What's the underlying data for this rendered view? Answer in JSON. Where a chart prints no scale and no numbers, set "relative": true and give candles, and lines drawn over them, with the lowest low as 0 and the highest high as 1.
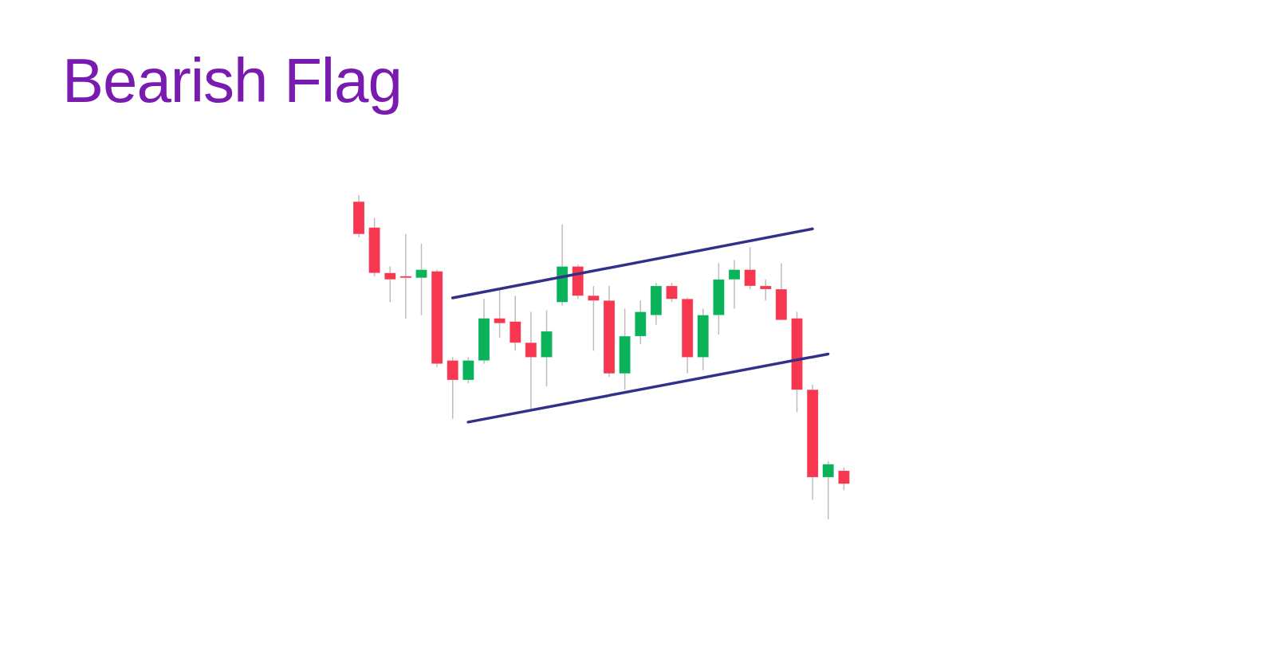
{
  "chart_data": {
    "type": "candlestick",
    "title": "Bearish Flag",
    "relative": true,
    "categories": [
      null,
      null,
      null,
      null,
      null,
      null,
      null,
      null,
      null,
      null,
      null,
      null,
      null,
      null,
      null,
      null,
      null,
      null,
      null,
      null,
      null,
      null,
      null,
      null,
      null,
      null,
      null,
      null,
      null,
      null,
      null,
      null
    ],
    "ohlc": [
      [
        0.98,
        1.0,
        0.87,
        0.88
      ],
      [
        0.9,
        0.93,
        0.75,
        0.76
      ],
      [
        0.76,
        0.78,
        0.67,
        0.74
      ],
      [
        0.75,
        0.88,
        0.62,
        0.745
      ],
      [
        0.745,
        0.85,
        0.63,
        0.77
      ],
      [
        0.765,
        0.77,
        0.47,
        0.48
      ],
      [
        0.49,
        0.5,
        0.31,
        0.43
      ],
      [
        0.43,
        0.5,
        0.42,
        0.49
      ],
      [
        0.49,
        0.68,
        0.48,
        0.62
      ],
      [
        0.62,
        0.71,
        0.56,
        0.605
      ],
      [
        0.61,
        0.69,
        0.52,
        0.545
      ],
      [
        0.545,
        0.64,
        0.34,
        0.5
      ],
      [
        0.5,
        0.645,
        0.41,
        0.58
      ],
      [
        0.67,
        0.91,
        0.66,
        0.78
      ],
      [
        0.78,
        0.785,
        0.68,
        0.69
      ],
      [
        0.69,
        0.72,
        0.52,
        0.675
      ],
      [
        0.675,
        0.72,
        0.44,
        0.45
      ],
      [
        0.45,
        0.65,
        0.4,
        0.565
      ],
      [
        0.565,
        0.675,
        0.54,
        0.64
      ],
      [
        0.63,
        0.73,
        0.6,
        0.72
      ],
      [
        0.72,
        0.73,
        0.67,
        0.68
      ],
      [
        0.68,
        0.685,
        0.45,
        0.5
      ],
      [
        0.5,
        0.65,
        0.46,
        0.63
      ],
      [
        0.63,
        0.79,
        0.57,
        0.74
      ],
      [
        0.74,
        0.8,
        0.65,
        0.77
      ],
      [
        0.77,
        0.84,
        0.71,
        0.72
      ],
      [
        0.72,
        0.74,
        0.675,
        0.71
      ],
      [
        0.71,
        0.79,
        0.615,
        0.615
      ],
      [
        0.62,
        0.64,
        0.33,
        0.4
      ],
      [
        0.4,
        0.415,
        0.06,
        0.13
      ],
      [
        0.13,
        0.18,
        0.0,
        0.17
      ],
      [
        0.15,
        0.16,
        0.09,
        0.11
      ]
    ],
    "colors": [
      "#f7374f",
      "#f7374f",
      "#f7374f",
      "#f7374f",
      "#0ab35a",
      "#f7374f",
      "#f7374f",
      "#0ab35a",
      "#0ab35a",
      "#f7374f",
      "#f7374f",
      "#f7374f",
      "#0ab35a",
      "#0ab35a",
      "#f7374f",
      "#f7374f",
      "#f7374f",
      "#0ab35a",
      "#0ab35a",
      "#0ab35a",
      "#f7374f",
      "#f7374f",
      "#0ab35a",
      "#0ab35a",
      "#0ab35a",
      "#f7374f",
      "#f7374f",
      "#f7374f",
      "#f7374f",
      "#f7374f",
      "#0ab35a",
      "#f7374f"
    ],
    "series": [
      {
        "type": "line",
        "color": "#33308a",
        "values": [
          null,
          null,
          null,
          null,
          null,
          null,
          0.683,
          null,
          null,
          null,
          null,
          null,
          null,
          null,
          null,
          null,
          null,
          null,
          null,
          null,
          null,
          null,
          null,
          null,
          null,
          null,
          null,
          null,
          null,
          0.896,
          null,
          null
        ]
      },
      {
        "type": "line",
        "color": "#33308a",
        "values": [
          null,
          null,
          null,
          null,
          null,
          null,
          null,
          0.3,
          null,
          null,
          null,
          null,
          null,
          null,
          null,
          null,
          null,
          null,
          null,
          null,
          null,
          null,
          null,
          null,
          null,
          null,
          null,
          null,
          null,
          null,
          0.51,
          null
        ]
      }
    ]
  }
}
